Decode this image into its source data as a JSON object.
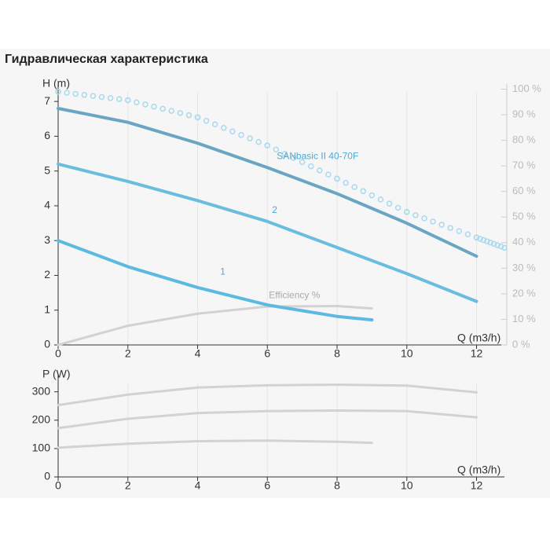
{
  "chart_data": [
    {
      "type": "line",
      "title": "Гидравлическая характеристика",
      "y_label": "H (m)",
      "x_label": "Q (m3/h)",
      "xlim": [
        0,
        12.8
      ],
      "xticks": [
        0,
        2,
        4,
        6,
        8,
        10,
        12
      ],
      "ylim": [
        0,
        7.5
      ],
      "yticks": [
        0,
        1,
        2,
        3,
        4,
        5,
        6,
        7
      ],
      "y2lim": [
        0,
        102
      ],
      "y2ticks": [
        {
          "value": 0,
          "label": "0 %"
        },
        {
          "value": 10,
          "label": "10 %"
        },
        {
          "value": 20,
          "label": "20 %"
        },
        {
          "value": 30,
          "label": "30 %"
        },
        {
          "value": 40,
          "label": "40 %"
        },
        {
          "value": 50,
          "label": "50 %"
        },
        {
          "value": 60,
          "label": "60 %"
        },
        {
          "value": 70,
          "label": "70 %"
        },
        {
          "value": 80,
          "label": "80 %"
        },
        {
          "value": 90,
          "label": "90 %"
        },
        {
          "value": 100,
          "label": "100 %"
        }
      ],
      "grid": true,
      "series": [
        {
          "color": "#a9d9ee",
          "linestyle": "dotted",
          "axis": "y2",
          "x": [
            0,
            2,
            4,
            6,
            8,
            10,
            12,
            12.8
          ],
          "values": [
            99,
            95.7,
            89,
            78,
            65,
            52,
            42,
            38
          ]
        },
        {
          "name": "Efficiency %",
          "color": "#d2d2d2",
          "axis": "y2",
          "x": [
            0,
            2,
            4,
            6,
            8,
            9
          ],
          "values": [
            0,
            7.5,
            12.2,
            15,
            15.2,
            14.3
          ]
        },
        {
          "name": "1",
          "color": "#5cb9e2",
          "x": [
            0,
            2,
            4,
            6,
            8,
            9
          ],
          "values": [
            3.0,
            2.25,
            1.65,
            1.15,
            0.82,
            0.72
          ]
        },
        {
          "name": "2",
          "color": "#6bbde0",
          "x": [
            0,
            2,
            4,
            6,
            8,
            10,
            12
          ],
          "values": [
            5.2,
            4.7,
            4.15,
            3.55,
            2.8,
            2.05,
            1.25
          ]
        },
        {
          "name": "SANbasic II 40-70F",
          "color": "#6aa6c4",
          "x": [
            0,
            2,
            4,
            6,
            8,
            10,
            12
          ],
          "values": [
            6.8,
            6.4,
            5.8,
            5.1,
            4.35,
            3.5,
            2.55
          ]
        }
      ]
    },
    {
      "type": "line",
      "y_label": "P (W)",
      "x_label": "Q (m3/h)",
      "xlim": [
        0,
        12.8
      ],
      "xticks": [
        0,
        2,
        4,
        6,
        8,
        10,
        12
      ],
      "ylim": [
        0,
        360
      ],
      "yticks": [
        0,
        100,
        200,
        300
      ],
      "grid": true,
      "series": [
        {
          "color": "#d2d2d2",
          "x": [
            0,
            2,
            4,
            6,
            8,
            10,
            12
          ],
          "values": [
            253,
            290,
            315,
            323,
            325,
            322,
            298
          ]
        },
        {
          "color": "#d2d2d2",
          "x": [
            0,
            2,
            4,
            6,
            8,
            10,
            12
          ],
          "values": [
            172,
            205,
            225,
            232,
            234,
            232,
            210
          ]
        },
        {
          "color": "#d2d2d2",
          "x": [
            0,
            2,
            4,
            6,
            8,
            9
          ],
          "values": [
            103,
            117,
            126,
            128,
            124,
            120
          ]
        }
      ]
    }
  ]
}
